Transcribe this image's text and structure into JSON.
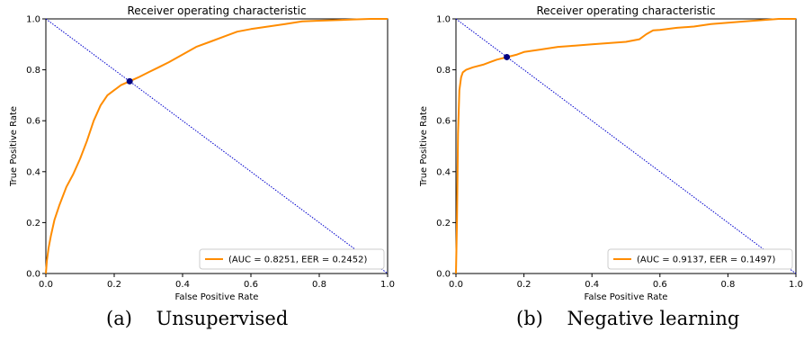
{
  "figure": {
    "captions": [
      {
        "tag": "(a)",
        "text": "Unsupervised"
      },
      {
        "tag": "(b)",
        "text": "Negative learning"
      }
    ]
  },
  "chart_data": [
    {
      "type": "line",
      "title": "Receiver operating characteristic",
      "xlabel": "False Positive Rate",
      "ylabel": "True Positive Rate",
      "xlim": [
        0.0,
        1.0
      ],
      "ylim": [
        0.0,
        1.0
      ],
      "xticks": [
        "0.0",
        "0.2",
        "0.4",
        "0.6",
        "0.8",
        "1.0"
      ],
      "yticks": [
        "0.0",
        "0.2",
        "0.4",
        "0.6",
        "0.8",
        "1.0"
      ],
      "grid": false,
      "legend_position": "lower-right",
      "colors": {
        "roc": "#ff8c00",
        "diagonal": "#0000cd",
        "eer_point": "#000080"
      },
      "series": [
        {
          "name": "(AUC = 0.8251, EER = 0.2452)",
          "x": [
            0.0,
            0.003,
            0.008,
            0.015,
            0.025,
            0.04,
            0.06,
            0.08,
            0.1,
            0.12,
            0.14,
            0.16,
            0.18,
            0.2,
            0.22,
            0.2452,
            0.27,
            0.3,
            0.33,
            0.36,
            0.4,
            0.44,
            0.48,
            0.52,
            0.56,
            0.6,
            0.65,
            0.7,
            0.75,
            0.8,
            0.85,
            0.9,
            0.95,
            1.0
          ],
          "y": [
            0.0,
            0.05,
            0.1,
            0.15,
            0.21,
            0.27,
            0.34,
            0.39,
            0.45,
            0.52,
            0.6,
            0.66,
            0.7,
            0.72,
            0.74,
            0.755,
            0.77,
            0.79,
            0.81,
            0.83,
            0.86,
            0.89,
            0.91,
            0.93,
            0.95,
            0.96,
            0.97,
            0.98,
            0.99,
            0.993,
            0.995,
            0.998,
            1.0,
            1.0
          ]
        }
      ],
      "reference_line": {
        "x": [
          0.0,
          1.0
        ],
        "y": [
          1.0,
          0.0
        ]
      },
      "eer_point": {
        "x": 0.2452,
        "y": 0.755
      }
    },
    {
      "type": "line",
      "title": "Receiver operating characteristic",
      "xlabel": "False Positive Rate",
      "ylabel": "True Positive Rate",
      "xlim": [
        0.0,
        1.0
      ],
      "ylim": [
        0.0,
        1.0
      ],
      "xticks": [
        "0.0",
        "0.2",
        "0.4",
        "0.6",
        "0.8",
        "1.0"
      ],
      "yticks": [
        "0.0",
        "0.2",
        "0.4",
        "0.6",
        "0.8",
        "1.0"
      ],
      "grid": false,
      "legend_position": "lower-right",
      "colors": {
        "roc": "#ff8c00",
        "diagonal": "#0000cd",
        "eer_point": "#000080"
      },
      "series": [
        {
          "name": "(AUC = 0.9137, EER = 0.1497)",
          "x": [
            0.0,
            0.003,
            0.006,
            0.01,
            0.015,
            0.02,
            0.03,
            0.05,
            0.08,
            0.1,
            0.12,
            0.1497,
            0.18,
            0.2,
            0.25,
            0.3,
            0.35,
            0.4,
            0.45,
            0.5,
            0.54,
            0.56,
            0.58,
            0.6,
            0.65,
            0.7,
            0.75,
            0.8,
            0.85,
            0.9,
            0.95,
            1.0
          ],
          "y": [
            0.0,
            0.2,
            0.55,
            0.72,
            0.77,
            0.79,
            0.8,
            0.81,
            0.82,
            0.83,
            0.84,
            0.85,
            0.86,
            0.87,
            0.88,
            0.89,
            0.895,
            0.9,
            0.905,
            0.91,
            0.92,
            0.94,
            0.955,
            0.957,
            0.965,
            0.97,
            0.98,
            0.985,
            0.99,
            0.995,
            1.0,
            1.0
          ]
        }
      ],
      "reference_line": {
        "x": [
          0.0,
          1.0
        ],
        "y": [
          1.0,
          0.0
        ]
      },
      "eer_point": {
        "x": 0.1497,
        "y": 0.85
      }
    }
  ]
}
